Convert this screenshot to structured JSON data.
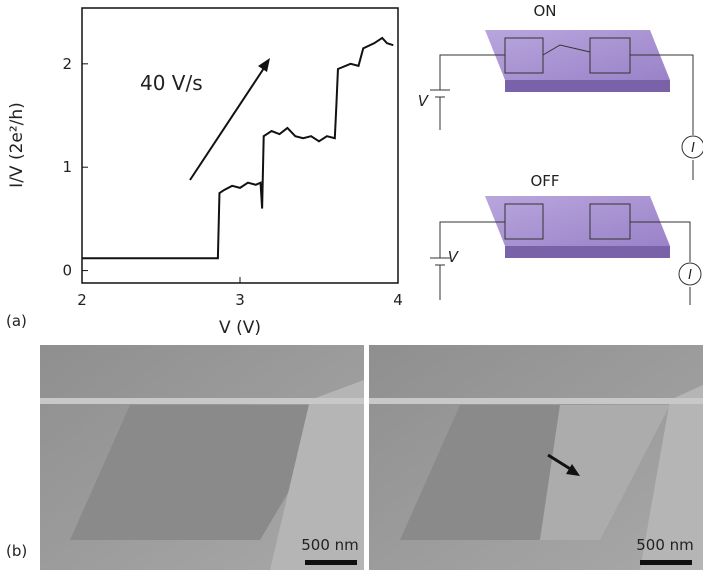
{
  "chart_data": {
    "type": "line",
    "annotation": "40 V/s",
    "x_label": "V (V)",
    "y_label": "I/V (2e²/h)",
    "x": [
      2,
      2.86,
      2.87,
      2.9,
      2.95,
      3.0,
      3.05,
      3.1,
      3.13,
      3.14,
      3.15,
      3.2,
      3.25,
      3.3,
      3.35,
      3.4,
      3.45,
      3.5,
      3.55,
      3.6,
      3.61,
      3.62,
      3.7,
      3.75,
      3.78,
      3.85,
      3.9,
      3.93,
      3.97
    ],
    "series": [
      {
        "color": "#111111",
        "values": [
          0.12,
          0.12,
          0.75,
          0.78,
          0.82,
          0.8,
          0.85,
          0.83,
          0.85,
          0.6,
          1.3,
          1.35,
          1.32,
          1.38,
          1.3,
          1.28,
          1.3,
          1.25,
          1.3,
          1.28,
          1.6,
          1.95,
          2.0,
          1.98,
          2.15,
          2.2,
          2.25,
          2.2,
          2.18
        ]
      }
    ],
    "xlim": [
      2,
      4
    ],
    "ylim": [
      -0.12,
      2.54
    ],
    "xticks": [
      2,
      3,
      4
    ],
    "yticks": [
      0,
      1,
      2
    ]
  },
  "panel_labels": [
    "(a)",
    "(b)"
  ],
  "schematic": {
    "states": [
      "ON",
      "OFF"
    ],
    "voltage_label": "V",
    "current_label": "I"
  },
  "images": {
    "scale_bars": [
      "500 nm",
      "500 nm"
    ]
  }
}
